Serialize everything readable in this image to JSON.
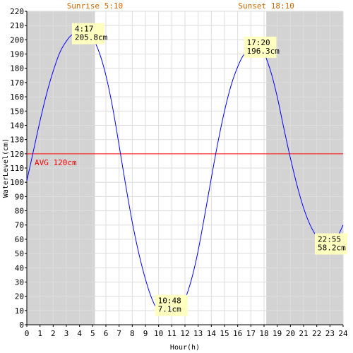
{
  "chart_data": {
    "type": "line",
    "title": "",
    "xlabel": "Hour(h)",
    "ylabel": "WaterLevel(cm)",
    "xlim": [
      0,
      24
    ],
    "ylim": [
      0,
      220
    ],
    "x_ticks": [
      "0",
      "1",
      "2",
      "3",
      "4",
      "5",
      "6",
      "7",
      "8",
      "9",
      "10",
      "11",
      "12",
      "13",
      "14",
      "15",
      "16",
      "17",
      "18",
      "19",
      "20",
      "21",
      "22",
      "23",
      "24"
    ],
    "y_ticks": [
      "0",
      "10",
      "20",
      "30",
      "40",
      "50",
      "60",
      "70",
      "80",
      "90",
      "100",
      "110",
      "120",
      "130",
      "140",
      "150",
      "160",
      "170",
      "180",
      "190",
      "200",
      "210",
      "220"
    ],
    "grid": true,
    "series": [
      {
        "color": "#0000ff",
        "points": [
          [
            0,
            101
          ],
          [
            0.5,
            122
          ],
          [
            1,
            143
          ],
          [
            1.5,
            162
          ],
          [
            2,
            178
          ],
          [
            2.5,
            191
          ],
          [
            3,
            199
          ],
          [
            3.5,
            204
          ],
          [
            4.28,
            205.8
          ],
          [
            4.5,
            205
          ],
          [
            5,
            201
          ],
          [
            5.5,
            191
          ],
          [
            6,
            175
          ],
          [
            6.5,
            153
          ],
          [
            7,
            126
          ],
          [
            7.5,
            98
          ],
          [
            8,
            72
          ],
          [
            8.5,
            50
          ],
          [
            9,
            32
          ],
          [
            9.5,
            18
          ],
          [
            10,
            10
          ],
          [
            10.8,
            7.1
          ],
          [
            11.5,
            10
          ],
          [
            12,
            18
          ],
          [
            12.5,
            32
          ],
          [
            13,
            52
          ],
          [
            13.5,
            77
          ],
          [
            14,
            103
          ],
          [
            14.5,
            128
          ],
          [
            15,
            150
          ],
          [
            15.5,
            168
          ],
          [
            16,
            181
          ],
          [
            16.5,
            190
          ],
          [
            17.33,
            196.3
          ],
          [
            17.8,
            194
          ],
          [
            18,
            191
          ],
          [
            18.5,
            178
          ],
          [
            19,
            160
          ],
          [
            19.5,
            138
          ],
          [
            20,
            117
          ],
          [
            20.5,
            98
          ],
          [
            21,
            82
          ],
          [
            21.5,
            70
          ],
          [
            22,
            62
          ],
          [
            22.5,
            59
          ],
          [
            22.92,
            58.2
          ],
          [
            23.5,
            61
          ],
          [
            24,
            70
          ]
        ]
      }
    ],
    "reference_line": {
      "y": 120,
      "label": "AVG 120cm",
      "color": "#ff0000"
    },
    "night_shading": [
      [
        0,
        5.1667
      ],
      [
        18.1667,
        24
      ]
    ],
    "sun_labels": [
      {
        "x": 5.1667,
        "text": "Sunrise 5:10"
      },
      {
        "x": 18.1667,
        "text": "Sunset 18:10"
      }
    ],
    "sun_label_color": "#cc6600",
    "annotations": [
      {
        "x": 4.28,
        "y": 205.8,
        "time": "4:17",
        "level": "205.8cm"
      },
      {
        "x": 10.8,
        "y": 7.1,
        "time": "10:48",
        "level": " 7.1cm"
      },
      {
        "x": 17.33,
        "y": 196.3,
        "time": "17:20",
        "level": "196.3cm"
      },
      {
        "x": 22.92,
        "y": 58.2,
        "time": "22:55",
        "level": " 58.2cm"
      }
    ],
    "annotation_bg": "#ffffc0",
    "night_color": "#d3d3d3",
    "grid_color": "#dddddd"
  }
}
